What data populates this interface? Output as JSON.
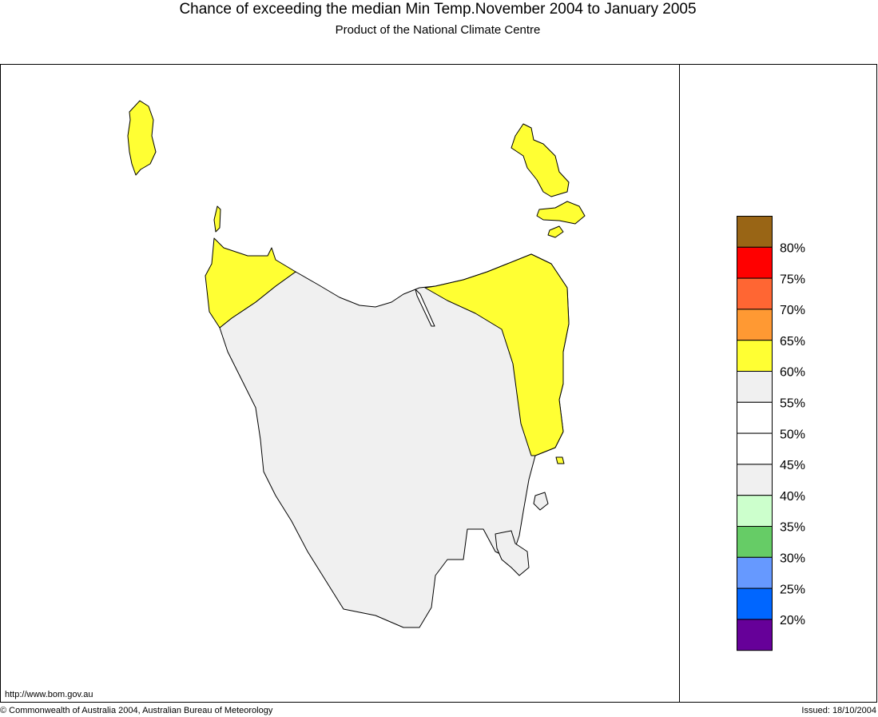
{
  "header": {
    "title": "Chance of exceeding the median Min Temp.November 2004 to January 2005",
    "subtitle": "Product of the National Climate Centre"
  },
  "legend": {
    "colors": [
      "#996515",
      "#ff0000",
      "#ff6633",
      "#ff9933",
      "#ffff33",
      "#f0f0f0",
      "#ffffff",
      "#ffffff",
      "#f0f0f0",
      "#ccffcc",
      "#66cc66",
      "#6699ff",
      "#0066ff",
      "#660099"
    ],
    "labels": [
      "80%",
      "75%",
      "70%",
      "65%",
      "60%",
      "55%",
      "50%",
      "45%",
      "40%",
      "35%",
      "30%",
      "25%",
      "20%"
    ]
  },
  "footer": {
    "url": "http://www.bom.gov.au",
    "copyright": "© Commonwealth of Australia 2004, Australian Bureau of Meteorology",
    "issued": "Issued: 18/10/2004"
  }
}
